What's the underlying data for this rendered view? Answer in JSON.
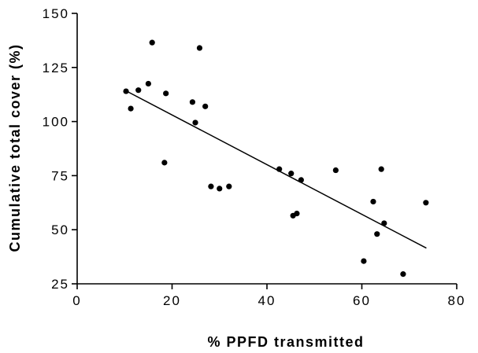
{
  "chart_data": {
    "type": "scatter",
    "title": "",
    "xlabel": "% PPFD transmitted",
    "ylabel": "Cumulative total cover (%)",
    "xlim": [
      0,
      80
    ],
    "ylim": [
      25,
      150
    ],
    "xticks": [
      0,
      20,
      40,
      60,
      80
    ],
    "yticks": [
      25,
      50,
      75,
      100,
      125,
      150
    ],
    "xtick_labels": [
      "0",
      "20",
      "40",
      "60",
      "80"
    ],
    "ytick_labels": [
      "25",
      "50",
      "75",
      "100",
      "125",
      "150"
    ],
    "grid": false,
    "legend": "none",
    "color": "#000000",
    "points": [
      {
        "x": 10.3,
        "y": 114
      },
      {
        "x": 11.3,
        "y": 106
      },
      {
        "x": 12.9,
        "y": 114.5
      },
      {
        "x": 15.0,
        "y": 117.5
      },
      {
        "x": 15.8,
        "y": 136.5
      },
      {
        "x": 18.4,
        "y": 81
      },
      {
        "x": 18.7,
        "y": 113
      },
      {
        "x": 24.3,
        "y": 109
      },
      {
        "x": 24.9,
        "y": 99.5
      },
      {
        "x": 25.8,
        "y": 134
      },
      {
        "x": 27.0,
        "y": 107
      },
      {
        "x": 28.2,
        "y": 70
      },
      {
        "x": 30.0,
        "y": 69
      },
      {
        "x": 32.0,
        "y": 70
      },
      {
        "x": 42.6,
        "y": 78
      },
      {
        "x": 45.1,
        "y": 76
      },
      {
        "x": 45.5,
        "y": 56.5
      },
      {
        "x": 46.3,
        "y": 57.5
      },
      {
        "x": 47.2,
        "y": 73
      },
      {
        "x": 54.5,
        "y": 77.5
      },
      {
        "x": 60.4,
        "y": 35.5
      },
      {
        "x": 62.4,
        "y": 63
      },
      {
        "x": 63.2,
        "y": 48
      },
      {
        "x": 64.1,
        "y": 78
      },
      {
        "x": 64.7,
        "y": 53
      },
      {
        "x": 68.7,
        "y": 29.5
      },
      {
        "x": 73.5,
        "y": 62.5
      }
    ],
    "trendline": {
      "x": [
        10.2,
        73.6
      ],
      "y": [
        114.3,
        41.5
      ]
    }
  }
}
